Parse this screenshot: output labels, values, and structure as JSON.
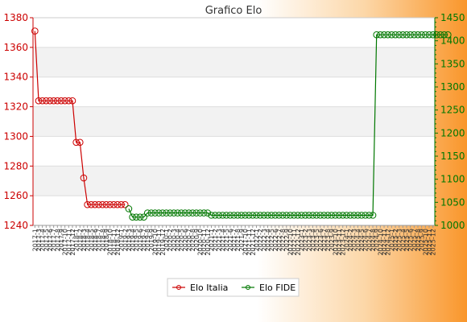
{
  "chart_data": {
    "type": "line",
    "title": "Grafico Elo",
    "y_left": {
      "min": 1240,
      "max": 1380,
      "step": 20,
      "ticks": [
        1240,
        1260,
        1280,
        1300,
        1320,
        1340,
        1360,
        1380
      ]
    },
    "y_right": {
      "min": 1000,
      "max": 1450,
      "step": 50,
      "ticks": [
        1000,
        1050,
        1100,
        1150,
        1200,
        1250,
        1300,
        1350,
        1400,
        1450
      ]
    },
    "x_tick_labels": [
      "2017-1",
      "2017-3",
      "2017-4",
      "2017-5",
      "2017-6",
      "2017-7",
      "2017-8",
      "2017-9",
      "2017-10",
      "2017-11",
      "2017-12",
      "2018-1",
      "2018-2",
      "2018-3",
      "2018-4",
      "2018-5",
      "2018-6",
      "2018-7",
      "2018-8",
      "2018-9",
      "2018-10",
      "2018-11",
      "2018-12",
      "2019-1",
      "2019-2",
      "2019-3",
      "2019-4",
      "2019-5",
      "2019-6",
      "2019-7",
      "2019-8",
      "2019-9",
      "2019-10",
      "2019-11",
      "2019-12",
      "2020-1",
      "2020-2",
      "2020-3",
      "2020-4",
      "2020-5",
      "2020-6",
      "2020-7",
      "2020-8",
      "2020-9",
      "2020-10",
      "2020-11",
      "2020-12",
      "2021-1",
      "2021-2",
      "2021-3",
      "2021-4",
      "2021-5",
      "2021-6",
      "2021-7",
      "2021-8",
      "2021-9",
      "2021-10",
      "2021-11",
      "2021-12",
      "2022-1",
      "2022-2",
      "2022-3",
      "2022-4",
      "2022-5",
      "2022-6",
      "2022-7",
      "2022-8",
      "2022-9",
      "2022-10",
      "2022-11",
      "2022-12",
      "2023-1",
      "2023-2",
      "2023-3",
      "2023-4",
      "2023-5",
      "2023-6",
      "2023-7",
      "2023-8",
      "2023-9",
      "2023-10",
      "2023-11",
      "2023-12",
      "2024-1",
      "2024-2",
      "2024-3",
      "2024-4",
      "2024-5",
      "2024-6",
      "2024-7",
      "2024-8",
      "2024-9",
      "2024-10",
      "2024-11",
      "2024-12",
      "2025-1",
      "2025-2",
      "2025-3",
      "2025-4",
      "2025-5",
      "2025-6",
      "2025-7",
      "2025-8",
      "2025-9",
      "2025-10",
      "2025-11",
      "2025-12"
    ],
    "series": [
      {
        "name": "Elo Italia",
        "axis": "left",
        "color": "#cc0000",
        "values": [
          1371,
          1324,
          1324,
          1324,
          1324,
          1324,
          1324,
          1324,
          1324,
          1324,
          1324,
          1296,
          1296,
          1272,
          1254,
          1254,
          1254,
          1254,
          1254,
          1254,
          1254,
          1254,
          1254,
          1254,
          1254,
          null,
          null,
          null,
          null,
          null,
          null,
          null,
          null,
          null,
          null,
          null,
          null,
          null,
          null,
          null,
          null,
          null,
          null,
          null,
          null,
          null,
          null,
          null,
          null,
          null,
          null,
          null,
          null,
          null,
          null,
          null,
          null,
          null,
          null,
          null,
          null,
          null,
          null,
          null,
          null,
          null,
          null,
          null,
          null,
          null,
          null,
          null,
          null,
          null,
          null,
          null,
          null,
          null,
          null,
          null,
          null,
          null,
          null,
          null,
          null,
          null,
          null,
          null,
          null,
          null,
          null,
          null,
          null,
          null,
          null,
          null,
          null,
          null,
          null,
          null,
          null,
          null,
          null,
          null,
          null,
          null,
          null
        ]
      },
      {
        "name": "Elo FIDE",
        "axis": "right",
        "color": "#007700",
        "values": [
          null,
          null,
          null,
          null,
          null,
          null,
          null,
          null,
          null,
          null,
          null,
          null,
          null,
          null,
          null,
          null,
          null,
          null,
          null,
          null,
          null,
          null,
          null,
          null,
          null,
          1036,
          1018,
          1018,
          1018,
          1018,
          1027,
          1027,
          1027,
          1027,
          1027,
          1027,
          1027,
          1027,
          1027,
          1027,
          1027,
          1027,
          1027,
          1027,
          1027,
          1027,
          1027,
          1022,
          1022,
          1022,
          1022,
          1022,
          1022,
          1022,
          1022,
          1022,
          1022,
          1022,
          1022,
          1022,
          1022,
          1022,
          1022,
          1022,
          1022,
          1022,
          1022,
          1022,
          1022,
          1022,
          1022,
          1022,
          1022,
          1022,
          1022,
          1022,
          1022,
          1022,
          1022,
          1022,
          1022,
          1022,
          1022,
          1022,
          1022,
          1022,
          1022,
          1022,
          1022,
          1022,
          1022,
          1413,
          1413,
          1413,
          1413,
          1413,
          1413,
          1413,
          1413,
          1413,
          1413,
          1413,
          1413,
          1413,
          1413,
          1413,
          1413,
          1413,
          1413,
          1413,
          1413
        ]
      }
    ],
    "legend": {
      "position": "bottom",
      "entries": [
        "Elo Italia",
        "Elo FIDE"
      ]
    },
    "grid": true
  }
}
